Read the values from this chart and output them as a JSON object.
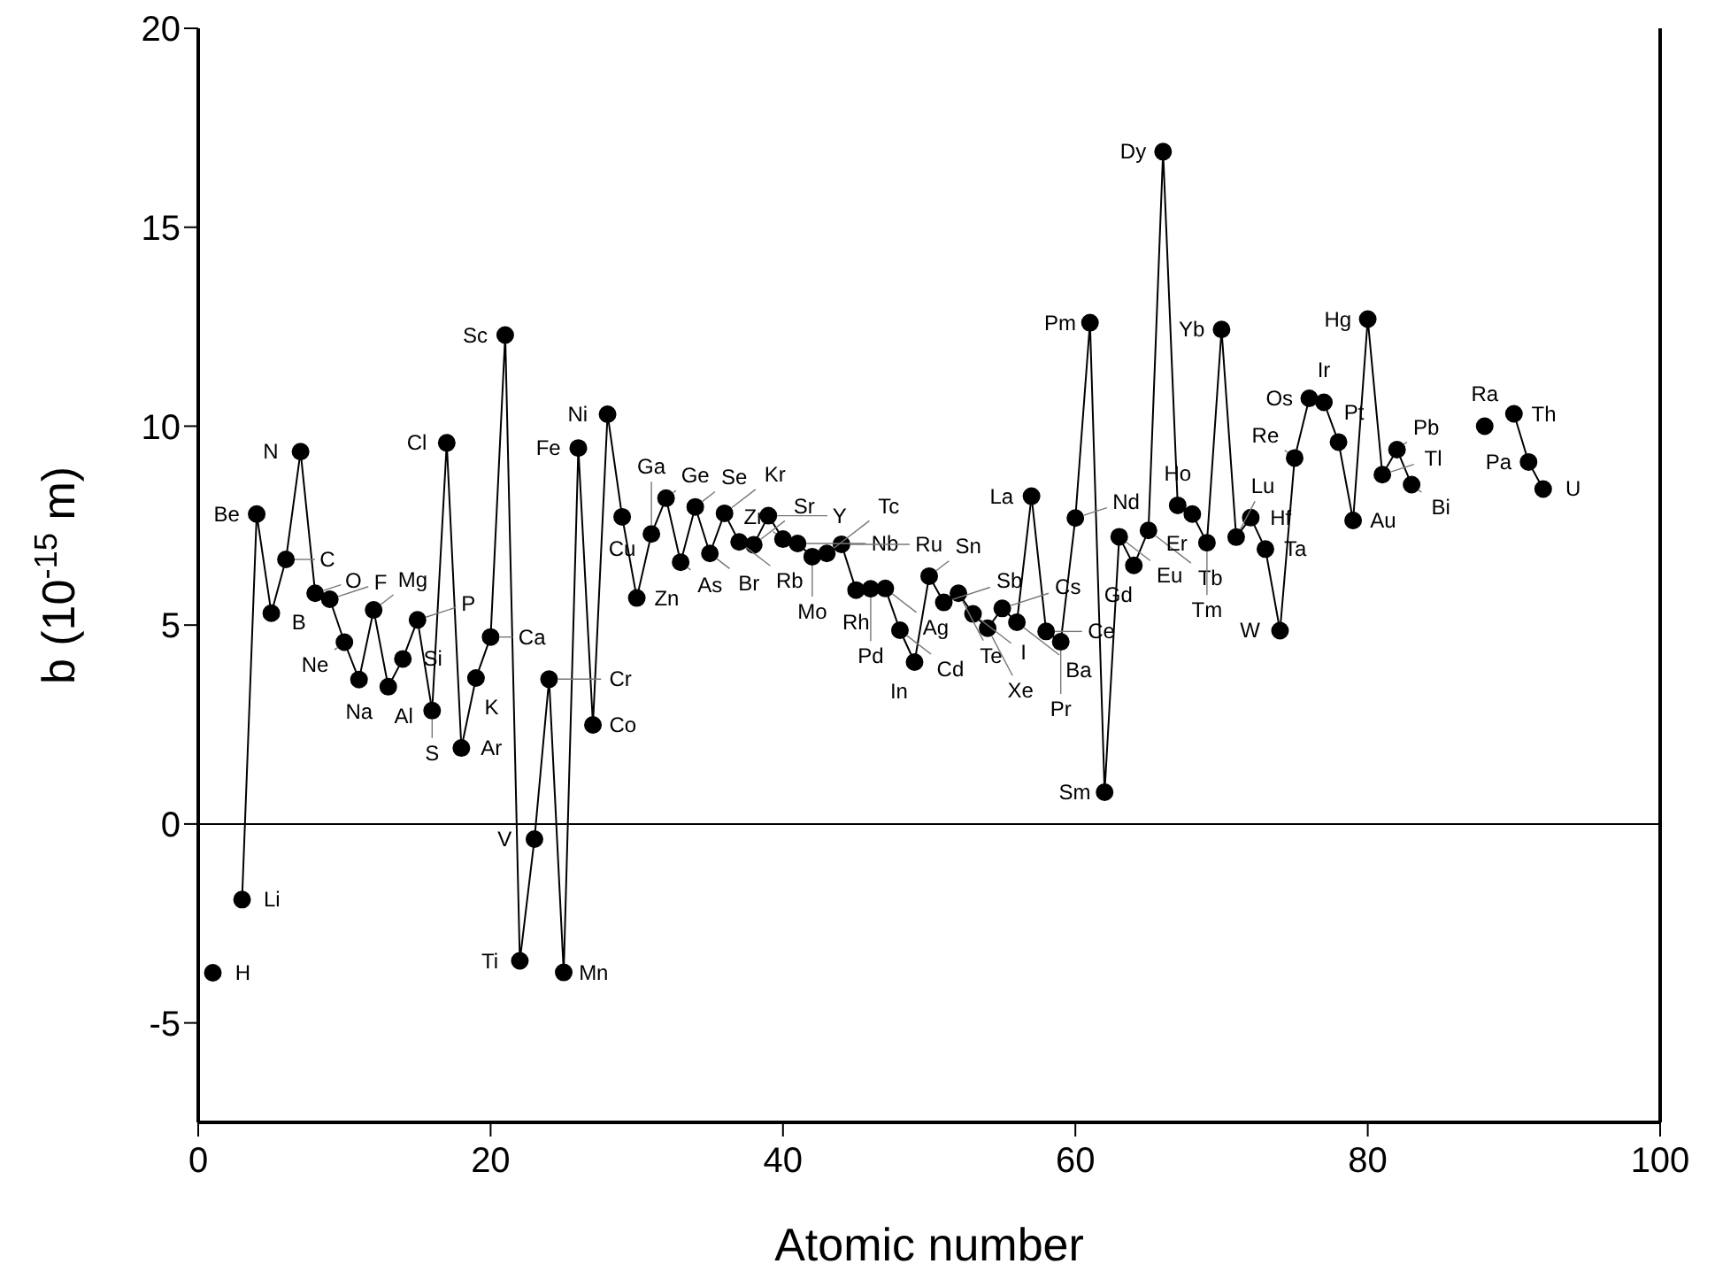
{
  "chart_data": {
    "type": "line",
    "xlabel": "Atomic number",
    "ylabel": "b (10$^{-15}$ m)",
    "x": [
      1,
      2,
      3,
      4,
      5,
      6,
      7,
      8,
      9,
      10,
      11,
      12,
      13,
      14,
      15,
      16,
      17,
      18,
      19,
      20,
      21,
      22,
      23,
      24,
      25,
      26,
      27,
      28,
      29,
      30,
      31,
      32,
      33,
      34,
      35,
      36,
      37,
      38,
      39,
      40,
      41,
      42,
      43,
      44,
      45,
      46,
      47,
      48,
      49,
      50,
      51,
      52,
      53,
      54,
      55,
      56,
      57,
      58,
      59,
      60,
      61,
      62,
      63,
      64,
      65,
      66,
      67,
      68,
      69,
      70,
      71,
      72,
      73,
      74,
      75,
      76,
      77,
      78,
      79,
      80,
      81,
      82,
      83,
      84,
      85,
      86,
      87,
      88,
      89,
      90,
      91,
      92
    ],
    "series": [
      {
        "color": "#000000",
        "values": [
          -3.74,
          null,
          -1.9,
          7.79,
          5.3,
          6.65,
          9.36,
          5.8,
          5.65,
          4.57,
          3.63,
          5.38,
          3.45,
          4.15,
          5.13,
          2.85,
          9.58,
          1.91,
          3.67,
          4.7,
          12.29,
          -3.44,
          -0.38,
          3.64,
          -3.73,
          9.45,
          2.49,
          10.3,
          7.72,
          5.68,
          7.29,
          8.19,
          6.58,
          7.97,
          6.8,
          7.81,
          7.09,
          7.02,
          7.75,
          7.16,
          7.05,
          6.72,
          6.8,
          7.03,
          5.88,
          5.91,
          5.92,
          4.87,
          4.07,
          6.23,
          5.57,
          5.8,
          5.28,
          4.92,
          5.42,
          5.07,
          8.24,
          4.84,
          4.58,
          7.69,
          12.6,
          0.8,
          7.22,
          6.5,
          7.38,
          16.9,
          8.01,
          7.79,
          7.07,
          12.43,
          7.21,
          7.7,
          6.91,
          4.86,
          9.2,
          10.7,
          10.6,
          9.6,
          7.63,
          12.69,
          8.78,
          9.41,
          8.53,
          null,
          null,
          null,
          null,
          10.0,
          null,
          10.31,
          9.1,
          8.42
        ]
      }
    ],
    "marker": "circle",
    "line_style": "solid",
    "xlim": [
      0,
      100
    ],
    "xticks": [
      0,
      20,
      40,
      60,
      80,
      100
    ],
    "ylim": [
      -7.5,
      20
    ],
    "yticks": [
      -5,
      0,
      5,
      10,
      15,
      20
    ],
    "grid": false,
    "legend": false,
    "ref_lines": [
      {
        "axis": "y",
        "value": 0,
        "color": "#000000"
      }
    ],
    "annotations": [
      {
        "text": "H",
        "x": 1,
        "y": -3.74
      },
      {
        "text": "Li",
        "x": 3,
        "y": -1.9
      },
      {
        "text": "Be",
        "x": 4,
        "y": 7.79
      },
      {
        "text": "B",
        "x": 5,
        "y": 5.3
      },
      {
        "text": "C",
        "x": 6,
        "y": 6.65
      },
      {
        "text": "N",
        "x": 7,
        "y": 9.36
      },
      {
        "text": "O",
        "x": 8,
        "y": 5.8
      },
      {
        "text": "F",
        "x": 9,
        "y": 5.65
      },
      {
        "text": "Ne",
        "x": 10,
        "y": 4.57
      },
      {
        "text": "Na",
        "x": 11,
        "y": 3.63
      },
      {
        "text": "Mg",
        "x": 12,
        "y": 5.38
      },
      {
        "text": "Al",
        "x": 13,
        "y": 3.45
      },
      {
        "text": "Si",
        "x": 14,
        "y": 4.15
      },
      {
        "text": "P",
        "x": 15,
        "y": 5.13
      },
      {
        "text": "S",
        "x": 16,
        "y": 2.85
      },
      {
        "text": "Cl",
        "x": 17,
        "y": 9.58
      },
      {
        "text": "Ar",
        "x": 18,
        "y": 1.91
      },
      {
        "text": "K",
        "x": 19,
        "y": 3.67
      },
      {
        "text": "Ca",
        "x": 20,
        "y": 4.7
      },
      {
        "text": "Sc",
        "x": 21,
        "y": 12.29
      },
      {
        "text": "Ti",
        "x": 22,
        "y": -3.44
      },
      {
        "text": "V",
        "x": 23,
        "y": -0.38
      },
      {
        "text": "Cr",
        "x": 24,
        "y": 3.64
      },
      {
        "text": "Mn",
        "x": 25,
        "y": -3.73
      },
      {
        "text": "Fe",
        "x": 26,
        "y": 9.45
      },
      {
        "text": "Co",
        "x": 27,
        "y": 2.49
      },
      {
        "text": "Ni",
        "x": 28,
        "y": 10.3
      },
      {
        "text": "Cu",
        "x": 29,
        "y": 7.72
      },
      {
        "text": "Zn",
        "x": 30,
        "y": 5.68
      },
      {
        "text": "Ga",
        "x": 31,
        "y": 7.29
      },
      {
        "text": "Ge",
        "x": 32,
        "y": 8.19
      },
      {
        "text": "As",
        "x": 33,
        "y": 6.58
      },
      {
        "text": "Se",
        "x": 34,
        "y": 7.97
      },
      {
        "text": "Br",
        "x": 35,
        "y": 6.8
      },
      {
        "text": "Kr",
        "x": 36,
        "y": 7.81
      },
      {
        "text": "Rb",
        "x": 37,
        "y": 7.09
      },
      {
        "text": "Sr",
        "x": 38,
        "y": 7.02
      },
      {
        "text": "Y",
        "x": 39,
        "y": 7.75
      },
      {
        "text": "Zr",
        "x": 40,
        "y": 7.16
      },
      {
        "text": "Nb",
        "x": 41,
        "y": 7.05
      },
      {
        "text": "Mo",
        "x": 42,
        "y": 6.72
      },
      {
        "text": "Tc",
        "x": 43,
        "y": 6.8
      },
      {
        "text": "Ru",
        "x": 44,
        "y": 7.03
      },
      {
        "text": "Rh",
        "x": 45,
        "y": 5.88
      },
      {
        "text": "Pd",
        "x": 46,
        "y": 5.91
      },
      {
        "text": "Ag",
        "x": 47,
        "y": 5.92
      },
      {
        "text": "Cd",
        "x": 48,
        "y": 4.87
      },
      {
        "text": "In",
        "x": 49,
        "y": 4.07
      },
      {
        "text": "Sn",
        "x": 50,
        "y": 6.23
      },
      {
        "text": "Sb",
        "x": 51,
        "y": 5.57
      },
      {
        "text": "Te",
        "x": 52,
        "y": 5.8
      },
      {
        "text": "I",
        "x": 53,
        "y": 5.28
      },
      {
        "text": "Xe",
        "x": 54,
        "y": 4.92
      },
      {
        "text": "Cs",
        "x": 55,
        "y": 5.42
      },
      {
        "text": "Ba",
        "x": 56,
        "y": 5.07
      },
      {
        "text": "La",
        "x": 57,
        "y": 8.24
      },
      {
        "text": "Ce",
        "x": 58,
        "y": 4.84
      },
      {
        "text": "Pr",
        "x": 59,
        "y": 4.58
      },
      {
        "text": "Nd",
        "x": 60,
        "y": 7.69
      },
      {
        "text": "Pm",
        "x": 61,
        "y": 12.6
      },
      {
        "text": "Sm",
        "x": 62,
        "y": 0.8
      },
      {
        "text": "Eu",
        "x": 63,
        "y": 7.22
      },
      {
        "text": "Gd",
        "x": 64,
        "y": 6.5
      },
      {
        "text": "Tb",
        "x": 65,
        "y": 7.38
      },
      {
        "text": "Dy",
        "x": 66,
        "y": 16.9
      },
      {
        "text": "Ho",
        "x": 67,
        "y": 8.01
      },
      {
        "text": "Er",
        "x": 68,
        "y": 7.79
      },
      {
        "text": "Tm",
        "x": 69,
        "y": 7.07
      },
      {
        "text": "Yb",
        "x": 70,
        "y": 12.43
      },
      {
        "text": "Lu",
        "x": 71,
        "y": 7.21
      },
      {
        "text": "Hf",
        "x": 72,
        "y": 7.7
      },
      {
        "text": "Ta",
        "x": 73,
        "y": 6.91
      },
      {
        "text": "W",
        "x": 74,
        "y": 4.86
      },
      {
        "text": "Re",
        "x": 75,
        "y": 9.2
      },
      {
        "text": "Os",
        "x": 76,
        "y": 10.7
      },
      {
        "text": "Ir",
        "x": 77,
        "y": 10.6
      },
      {
        "text": "Pt",
        "x": 78,
        "y": 9.6
      },
      {
        "text": "Au",
        "x": 79,
        "y": 7.63
      },
      {
        "text": "Hg",
        "x": 80,
        "y": 12.69
      },
      {
        "text": "Tl",
        "x": 81,
        "y": 8.78
      },
      {
        "text": "Pb",
        "x": 82,
        "y": 9.41
      },
      {
        "text": "Bi",
        "x": 83,
        "y": 8.53
      },
      {
        "text": "Ra",
        "x": 88,
        "y": 10.0
      },
      {
        "text": "Th",
        "x": 90,
        "y": 10.31
      },
      {
        "text": "Pa",
        "x": 91,
        "y": 9.1
      },
      {
        "text": "U",
        "x": 92,
        "y": 8.42
      }
    ]
  }
}
